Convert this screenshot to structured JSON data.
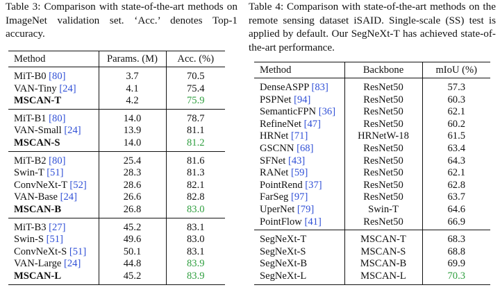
{
  "table3": {
    "caption": "Table 3:   Comparison with state-of-the-art methods on ImageNet validation set. ‘Acc.’ denotes Top-1 accuracy.",
    "headers": [
      "Method",
      "Params. (M)",
      "Acc. (%)"
    ],
    "groups": [
      [
        {
          "name": "MiT-B0",
          "cite": "[80]",
          "params": "3.7",
          "acc": "70.5",
          "bold": false,
          "best": false
        },
        {
          "name": "VAN-Tiny",
          "cite": "[24]",
          "params": "4.1",
          "acc": "75.4",
          "bold": false,
          "best": false
        },
        {
          "name": "MSCAN-T",
          "cite": "",
          "params": "4.2",
          "acc": "75.9",
          "bold": true,
          "best": true
        }
      ],
      [
        {
          "name": "MiT-B1",
          "cite": "[80]",
          "params": "14.0",
          "acc": "78.7",
          "bold": false,
          "best": false
        },
        {
          "name": "VAN-Small",
          "cite": "[24]",
          "params": "13.9",
          "acc": "81.1",
          "bold": false,
          "best": false
        },
        {
          "name": "MSCAN-S",
          "cite": "",
          "params": "14.0",
          "acc": "81.2",
          "bold": true,
          "best": true
        }
      ],
      [
        {
          "name": "MiT-B2",
          "cite": "[80]",
          "params": "25.4",
          "acc": "81.6",
          "bold": false,
          "best": false
        },
        {
          "name": "Swin-T",
          "cite": "[51]",
          "params": "28.3",
          "acc": "81.3",
          "bold": false,
          "best": false
        },
        {
          "name": "ConvNeXt-T",
          "cite": "[52]",
          "params": "28.6",
          "acc": "82.1",
          "bold": false,
          "best": false
        },
        {
          "name": "VAN-Base",
          "cite": "[24]",
          "params": "26.6",
          "acc": "82.8",
          "bold": false,
          "best": false
        },
        {
          "name": "MSCAN-B",
          "cite": "",
          "params": "26.8",
          "acc": "83.0",
          "bold": true,
          "best": true
        }
      ],
      [
        {
          "name": "MiT-B3",
          "cite": "[27]",
          "params": "45.2",
          "acc": "83.1",
          "bold": false,
          "best": false
        },
        {
          "name": "Swin-S",
          "cite": "[51]",
          "params": "49.6",
          "acc": "83.0",
          "bold": false,
          "best": false
        },
        {
          "name": "ConvNeXt-S",
          "cite": "[51]",
          "params": "50.1",
          "acc": "83.1",
          "bold": false,
          "best": false
        },
        {
          "name": "VAN-Large",
          "cite": "[24]",
          "params": "44.8",
          "acc": "83.9",
          "bold": false,
          "best": true
        },
        {
          "name": "MSCAN-L",
          "cite": "",
          "params": "45.2",
          "acc": "83.9",
          "bold": true,
          "best": true
        }
      ]
    ]
  },
  "table4": {
    "caption": "Table 4: Comparison with state-of-the-art methods on the remote sensing dataset iSAID. Single-scale (SS) test is applied by default. Our SegNeXt-T has achieved state-of-the-art performance.",
    "headers": [
      "Method",
      "Backbone",
      "mIoU (%)"
    ],
    "groups": [
      [
        {
          "name": "DenseASPP",
          "cite": "[83]",
          "backbone": "ResNet50",
          "miou": "57.3",
          "best": false
        },
        {
          "name": "PSPNet",
          "cite": "[94]",
          "backbone": "ResNet50",
          "miou": "60.3",
          "best": false
        },
        {
          "name": "SemanticFPN",
          "cite": "[36]",
          "backbone": "ResNet50",
          "miou": "62.1",
          "best": false
        },
        {
          "name": "RefineNet",
          "cite": "[47]",
          "backbone": "ResNet50",
          "miou": "60.2",
          "best": false
        },
        {
          "name": "HRNet",
          "cite": "[71]",
          "backbone": "HRNetW-18",
          "miou": "61.5",
          "best": false
        },
        {
          "name": "GSCNN",
          "cite": "[68]",
          "backbone": "ResNet50",
          "miou": "63.4",
          "best": false
        },
        {
          "name": "SFNet",
          "cite": "[43]",
          "backbone": "ResNet50",
          "miou": "64.3",
          "best": false
        },
        {
          "name": "RANet",
          "cite": "[59]",
          "backbone": "ResNet50",
          "miou": "62.1",
          "best": false
        },
        {
          "name": "PointRend",
          "cite": "[37]",
          "backbone": "ResNet50",
          "miou": "62.8",
          "best": false
        },
        {
          "name": "FarSeg",
          "cite": "[97]",
          "backbone": "ResNet50",
          "miou": "63.7",
          "best": false
        },
        {
          "name": "UperNet",
          "cite": "[79]",
          "backbone": "Swin-T",
          "miou": "64.6",
          "best": false
        },
        {
          "name": "PointFlow",
          "cite": "[41]",
          "backbone": "ResNet50",
          "miou": "66.9",
          "best": false
        }
      ],
      [
        {
          "name": "SegNeXt-T",
          "cite": "",
          "backbone": "MSCAN-T",
          "miou": "68.3",
          "best": false
        },
        {
          "name": "SegNeXt-S",
          "cite": "",
          "backbone": "MSCAN-S",
          "miou": "68.8",
          "best": false
        },
        {
          "name": "SegNeXt-B",
          "cite": "",
          "backbone": "MSCAN-B",
          "miou": "69.9",
          "best": false
        },
        {
          "name": "SegNeXt-L",
          "cite": "",
          "backbone": "MSCAN-L",
          "miou": "70.3",
          "best": true
        }
      ]
    ]
  },
  "colors": {
    "citation": "#2f4fd6",
    "best": "#2e9e3e",
    "text": "#111111"
  }
}
